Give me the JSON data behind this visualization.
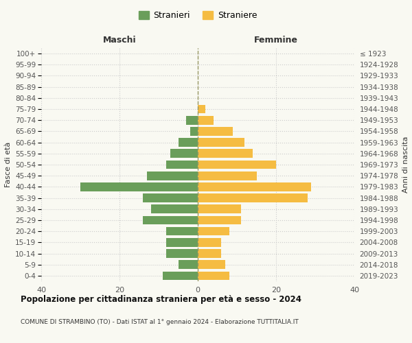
{
  "age_groups": [
    "0-4",
    "5-9",
    "10-14",
    "15-19",
    "20-24",
    "25-29",
    "30-34",
    "35-39",
    "40-44",
    "45-49",
    "50-54",
    "55-59",
    "60-64",
    "65-69",
    "70-74",
    "75-79",
    "80-84",
    "85-89",
    "90-94",
    "95-99",
    "100+"
  ],
  "birth_years": [
    "2019-2023",
    "2014-2018",
    "2009-2013",
    "2004-2008",
    "1999-2003",
    "1994-1998",
    "1989-1993",
    "1984-1988",
    "1979-1983",
    "1974-1978",
    "1969-1973",
    "1964-1968",
    "1959-1963",
    "1954-1958",
    "1949-1953",
    "1944-1948",
    "1939-1943",
    "1934-1938",
    "1929-1933",
    "1924-1928",
    "≤ 1923"
  ],
  "males": [
    9,
    5,
    8,
    8,
    8,
    14,
    12,
    14,
    30,
    13,
    8,
    7,
    5,
    2,
    3,
    0,
    0,
    0,
    0,
    0,
    0
  ],
  "females": [
    8,
    7,
    6,
    6,
    8,
    11,
    11,
    28,
    29,
    15,
    20,
    14,
    12,
    9,
    4,
    2,
    0,
    0,
    0,
    0,
    0
  ],
  "male_color": "#6a9e5a",
  "female_color": "#f5bc42",
  "background_color": "#f9f9f2",
  "grid_color": "#cccccc",
  "center_line_color": "#999966",
  "xlim": 40,
  "title": "Popolazione per cittadinanza straniera per età e sesso - 2024",
  "subtitle": "COMUNE DI STRAMBINO (TO) - Dati ISTAT al 1° gennaio 2024 - Elaborazione TUTTITALIA.IT",
  "xlabel_left": "Maschi",
  "xlabel_right": "Femmine",
  "ylabel_left": "Fasce di età",
  "ylabel_right": "Anni di nascita",
  "legend_male": "Stranieri",
  "legend_female": "Straniere",
  "xtick_labels": [
    "40",
    "20",
    "0",
    "20",
    "40"
  ]
}
